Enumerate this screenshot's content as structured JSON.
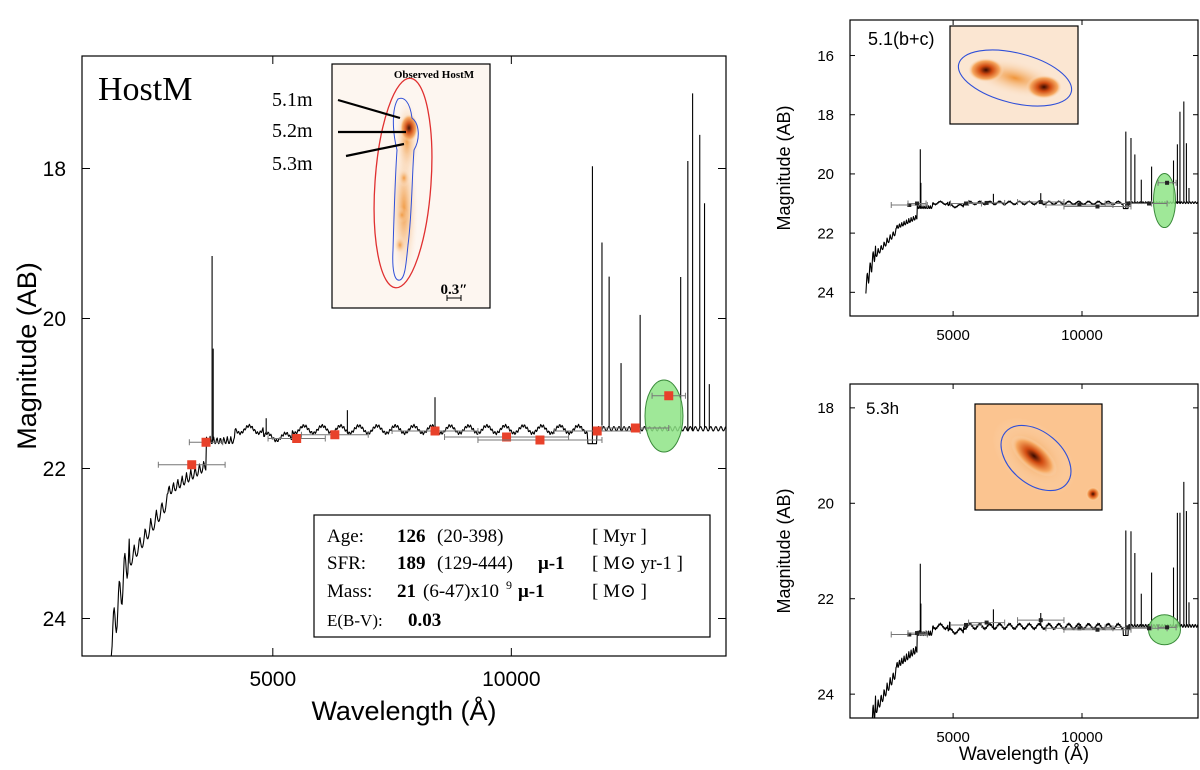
{
  "chart_data": [
    {
      "type": "line",
      "panel": "HostM",
      "title": "HostM",
      "xlabel": "Wavelength (Å)",
      "ylabel": "Magnitude (AB)",
      "xlim": [
        1000,
        14500
      ],
      "ylim": [
        24.5,
        16.5
      ],
      "xticks": [
        5000,
        10000
      ],
      "yticks": [
        18,
        20,
        22,
        24
      ],
      "photometry": {
        "x": [
          3300,
          3600,
          5500,
          6300,
          8400,
          9900,
          10600,
          11800,
          12600,
          13300
        ],
        "y": [
          21.95,
          21.65,
          21.6,
          21.55,
          21.5,
          21.58,
          21.62,
          21.5,
          21.46,
          21.03
        ],
        "xerr": [
          700,
          350,
          600,
          700,
          900,
          1300,
          1300,
          900,
          700,
          350
        ]
      },
      "green_ellipse": {
        "x": 13200,
        "y": 21.3
      },
      "inset": {
        "label": "Observed HostM",
        "scale_bar": "0.3″",
        "annotations": [
          "5.1m",
          "5.2m",
          "5.3m"
        ]
      },
      "fit_box": {
        "age_label": "Age:",
        "age_value": "126",
        "age_range": "(20-398)",
        "age_unit": "[ Myr ]",
        "sfr_label": "SFR:",
        "sfr_value": "189",
        "sfr_range": "(129-444)",
        "sfr_mu": "μ-1",
        "sfr_unit": "[ M⊙ yr-1 ]",
        "mass_label": "Mass:",
        "mass_value": "21",
        "mass_range": "(6-47)x10",
        "mass_exp": "9",
        "mass_mu": "μ-1",
        "mass_unit": "[ M⊙ ]",
        "ebv_label": "E(B-V):",
        "ebv_value": "0.03"
      }
    },
    {
      "type": "line",
      "panel": "5.1(b+c)",
      "title": "5.1(b+c)",
      "xlabel": "",
      "ylabel": "Magnitude (AB)",
      "xlim": [
        1000,
        14500
      ],
      "ylim": [
        24.8,
        14.8
      ],
      "xticks": [
        5000,
        10000
      ],
      "yticks": [
        16,
        18,
        20,
        22,
        24
      ],
      "photometry": {
        "x": [
          3300,
          3600,
          5500,
          6300,
          8400,
          9900,
          10600,
          11800,
          12600,
          13300
        ],
        "y": [
          21.05,
          21.0,
          21.0,
          20.98,
          20.95,
          21.05,
          21.1,
          21.0,
          21.0,
          20.3
        ],
        "xerr": [
          700,
          350,
          600,
          700,
          900,
          1300,
          1300,
          900,
          700,
          350
        ]
      },
      "green_ellipse": {
        "x": 13200,
        "y": 20.9
      }
    },
    {
      "type": "line",
      "panel": "5.3h",
      "title": "5.3h",
      "xlabel": "Wavelength (Å)",
      "ylabel": "Magnitude (AB)",
      "xlim": [
        1000,
        14500
      ],
      "ylim": [
        24.5,
        17.5
      ],
      "xticks": [
        5000,
        10000
      ],
      "yticks": [
        18,
        20,
        22,
        24
      ],
      "photometry": {
        "x": [
          3300,
          3600,
          5500,
          6300,
          8400,
          9900,
          10600,
          11800,
          12600,
          13300
        ],
        "y": [
          22.75,
          22.72,
          22.55,
          22.5,
          22.45,
          22.62,
          22.65,
          22.6,
          22.62,
          22.6
        ],
        "xerr": [
          700,
          350,
          600,
          700,
          900,
          1300,
          1300,
          900,
          700,
          350
        ]
      },
      "green_ellipse": {
        "x": 13200,
        "y": 22.65
      }
    }
  ]
}
